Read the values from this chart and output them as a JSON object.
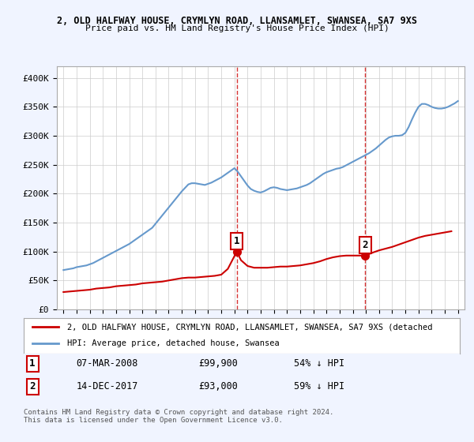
{
  "title_line1": "2, OLD HALFWAY HOUSE, CRYMLYN ROAD, LLANSAMLET, SWANSEA, SA7 9XS",
  "title_line2": "Price paid vs. HM Land Registry's House Price Index (HPI)",
  "legend_line1": "2, OLD HALFWAY HOUSE, CRYMLYN ROAD, LLANSAMLET, SWANSEA, SA7 9XS (detached",
  "legend_line2": "HPI: Average price, detached house, Swansea",
  "footnote": "Contains HM Land Registry data © Crown copyright and database right 2024.\nThis data is licensed under the Open Government Licence v3.0.",
  "annotation1_label": "1",
  "annotation1_date": "07-MAR-2008",
  "annotation1_price": "£99,900",
  "annotation1_pct": "54% ↓ HPI",
  "annotation2_label": "2",
  "annotation2_date": "14-DEC-2017",
  "annotation2_price": "£93,000",
  "annotation2_pct": "59% ↓ HPI",
  "sale1_year": 2008.18,
  "sale1_price": 99900,
  "sale2_year": 2017.96,
  "sale2_price": 93000,
  "ylim": [
    0,
    420000
  ],
  "xlim_start": 1994.5,
  "xlim_end": 2025.5,
  "background_color": "#f0f4ff",
  "plot_bg_color": "#ffffff",
  "red_line_color": "#cc0000",
  "blue_line_color": "#6699cc",
  "vline_color": "#cc0000",
  "sale_dot_color": "#cc0000",
  "grid_color": "#cccccc",
  "title_color": "#000000",
  "hpi_years": [
    1995,
    1995.25,
    1995.5,
    1995.75,
    1996,
    1996.25,
    1996.5,
    1996.75,
    1997,
    1997.25,
    1997.5,
    1997.75,
    1998,
    1998.25,
    1998.5,
    1998.75,
    1999,
    1999.25,
    1999.5,
    1999.75,
    2000,
    2000.25,
    2000.5,
    2000.75,
    2001,
    2001.25,
    2001.5,
    2001.75,
    2002,
    2002.25,
    2002.5,
    2002.75,
    2003,
    2003.25,
    2003.5,
    2003.75,
    2004,
    2004.25,
    2004.5,
    2004.75,
    2005,
    2005.25,
    2005.5,
    2005.75,
    2006,
    2006.25,
    2006.5,
    2006.75,
    2007,
    2007.25,
    2007.5,
    2007.75,
    2008,
    2008.25,
    2008.5,
    2008.75,
    2009,
    2009.25,
    2009.5,
    2009.75,
    2010,
    2010.25,
    2010.5,
    2010.75,
    2011,
    2011.25,
    2011.5,
    2011.75,
    2012,
    2012.25,
    2012.5,
    2012.75,
    2013,
    2013.25,
    2013.5,
    2013.75,
    2014,
    2014.25,
    2014.5,
    2014.75,
    2015,
    2015.25,
    2015.5,
    2015.75,
    2016,
    2016.25,
    2016.5,
    2016.75,
    2017,
    2017.25,
    2017.5,
    2017.75,
    2018,
    2018.25,
    2018.5,
    2018.75,
    2019,
    2019.25,
    2019.5,
    2019.75,
    2020,
    2020.25,
    2020.5,
    2020.75,
    2021,
    2021.25,
    2021.5,
    2021.75,
    2022,
    2022.25,
    2022.5,
    2022.75,
    2023,
    2023.25,
    2023.5,
    2023.75,
    2024,
    2024.25,
    2024.5,
    2024.75,
    2025
  ],
  "hpi_values": [
    68000,
    69000,
    70000,
    71000,
    73000,
    74000,
    75000,
    76000,
    78000,
    80000,
    83000,
    86000,
    89000,
    92000,
    95000,
    98000,
    101000,
    104000,
    107000,
    110000,
    113000,
    117000,
    121000,
    125000,
    129000,
    133000,
    137000,
    141000,
    148000,
    155000,
    162000,
    169000,
    176000,
    183000,
    190000,
    197000,
    204000,
    210000,
    216000,
    218000,
    218000,
    217000,
    216000,
    215000,
    217000,
    219000,
    222000,
    225000,
    228000,
    232000,
    236000,
    240000,
    244000,
    238000,
    230000,
    222000,
    214000,
    208000,
    205000,
    203000,
    202000,
    204000,
    207000,
    210000,
    211000,
    210000,
    208000,
    207000,
    206000,
    207000,
    208000,
    209000,
    211000,
    213000,
    215000,
    218000,
    222000,
    226000,
    230000,
    234000,
    237000,
    239000,
    241000,
    243000,
    244000,
    246000,
    249000,
    252000,
    255000,
    258000,
    261000,
    264000,
    267000,
    270000,
    274000,
    278000,
    283000,
    288000,
    293000,
    297000,
    299000,
    300000,
    300000,
    301000,
    305000,
    315000,
    328000,
    340000,
    350000,
    355000,
    355000,
    353000,
    350000,
    348000,
    347000,
    347000,
    348000,
    350000,
    353000,
    356000,
    360000
  ],
  "red_years": [
    1995,
    1995.5,
    1996,
    1996.5,
    1997,
    1997.5,
    1998,
    1998.5,
    1999,
    1999.5,
    2000,
    2000.5,
    2001,
    2001.5,
    2002,
    2002.5,
    2003,
    2003.5,
    2004,
    2004.5,
    2005,
    2005.5,
    2006,
    2006.5,
    2007,
    2007.5,
    2008.18,
    2008.5,
    2009,
    2009.5,
    2010,
    2010.5,
    2011,
    2011.5,
    2012,
    2012.5,
    2013,
    2013.5,
    2014,
    2014.5,
    2015,
    2015.5,
    2016,
    2016.5,
    2017,
    2017.5,
    2017.96,
    2018.5,
    2019,
    2019.5,
    2020,
    2020.5,
    2021,
    2021.5,
    2022,
    2022.5,
    2023,
    2023.5,
    2024,
    2024.5
  ],
  "red_values": [
    30000,
    31000,
    32000,
    33000,
    34000,
    36000,
    37000,
    38000,
    40000,
    41000,
    42000,
    43000,
    45000,
    46000,
    47000,
    48000,
    50000,
    52000,
    54000,
    55000,
    55000,
    56000,
    57000,
    58000,
    60000,
    70000,
    99900,
    85000,
    75000,
    72000,
    72000,
    72000,
    73000,
    74000,
    74000,
    75000,
    76000,
    78000,
    80000,
    83000,
    87000,
    90000,
    92000,
    93000,
    93000,
    93000,
    93000,
    98000,
    102000,
    105000,
    108000,
    112000,
    116000,
    120000,
    124000,
    127000,
    129000,
    131000,
    133000,
    135000
  ]
}
